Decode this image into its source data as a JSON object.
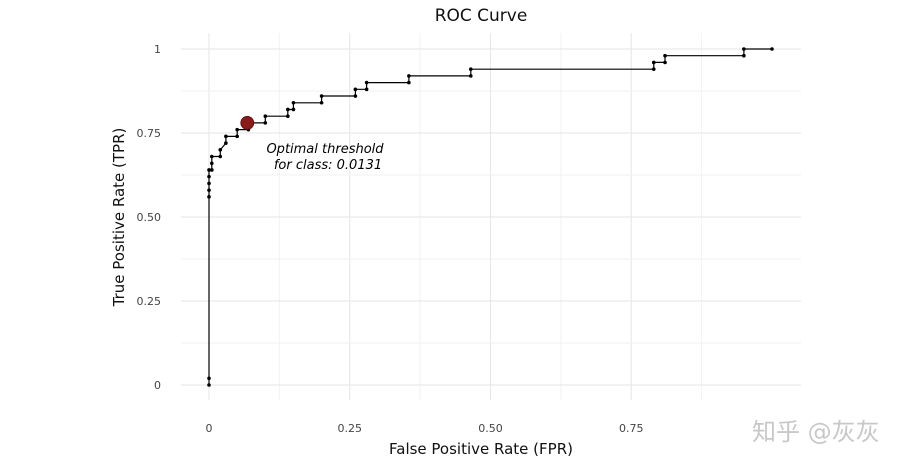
{
  "chart_data": {
    "type": "line",
    "title": "ROC Curve",
    "xlabel": "False Positive Rate (FPR)",
    "ylabel": "True Positive Rate (TPR)",
    "xlim": [
      0,
      1
    ],
    "ylim": [
      0,
      1
    ],
    "x_ticks": [
      0,
      0.25,
      0.5,
      0.75
    ],
    "x_tick_labels": [
      "0",
      "0.25",
      "0.50",
      "0.75"
    ],
    "y_ticks": [
      0,
      0.25,
      0.5,
      0.75,
      1
    ],
    "y_tick_labels": [
      "0",
      "0.25",
      "0.50",
      "0.75",
      "1"
    ],
    "grid": true,
    "line_color": "#000000",
    "series": [
      {
        "x": [
          0,
          0,
          0,
          0,
          0,
          0,
          0,
          0.005,
          0.005,
          0.005,
          0.02,
          0.02,
          0.03,
          0.03,
          0.05,
          0.05,
          0.07,
          0.07,
          0.1,
          0.1,
          0.14,
          0.14,
          0.15,
          0.15,
          0.2,
          0.2,
          0.26,
          0.26,
          0.28,
          0.28,
          0.355,
          0.355,
          0.465,
          0.465,
          0.79,
          0.79,
          0.81,
          0.81,
          0.95,
          0.95,
          1.0
        ],
        "y": [
          0,
          0.02,
          0.56,
          0.58,
          0.6,
          0.62,
          0.64,
          0.64,
          0.66,
          0.68,
          0.68,
          0.7,
          0.72,
          0.74,
          0.74,
          0.76,
          0.76,
          0.78,
          0.78,
          0.8,
          0.8,
          0.82,
          0.82,
          0.84,
          0.84,
          0.86,
          0.86,
          0.88,
          0.88,
          0.9,
          0.9,
          0.92,
          0.92,
          0.94,
          0.94,
          0.96,
          0.96,
          0.98,
          0.98,
          1.0,
          1.0
        ]
      }
    ],
    "optimal_point": {
      "x": 0.068,
      "y": 0.78,
      "color": "#8b1a1a"
    },
    "annotation": [
      "Optimal threshold",
      "for class: 0.0131"
    ]
  },
  "watermark": "知乎 @灰灰"
}
